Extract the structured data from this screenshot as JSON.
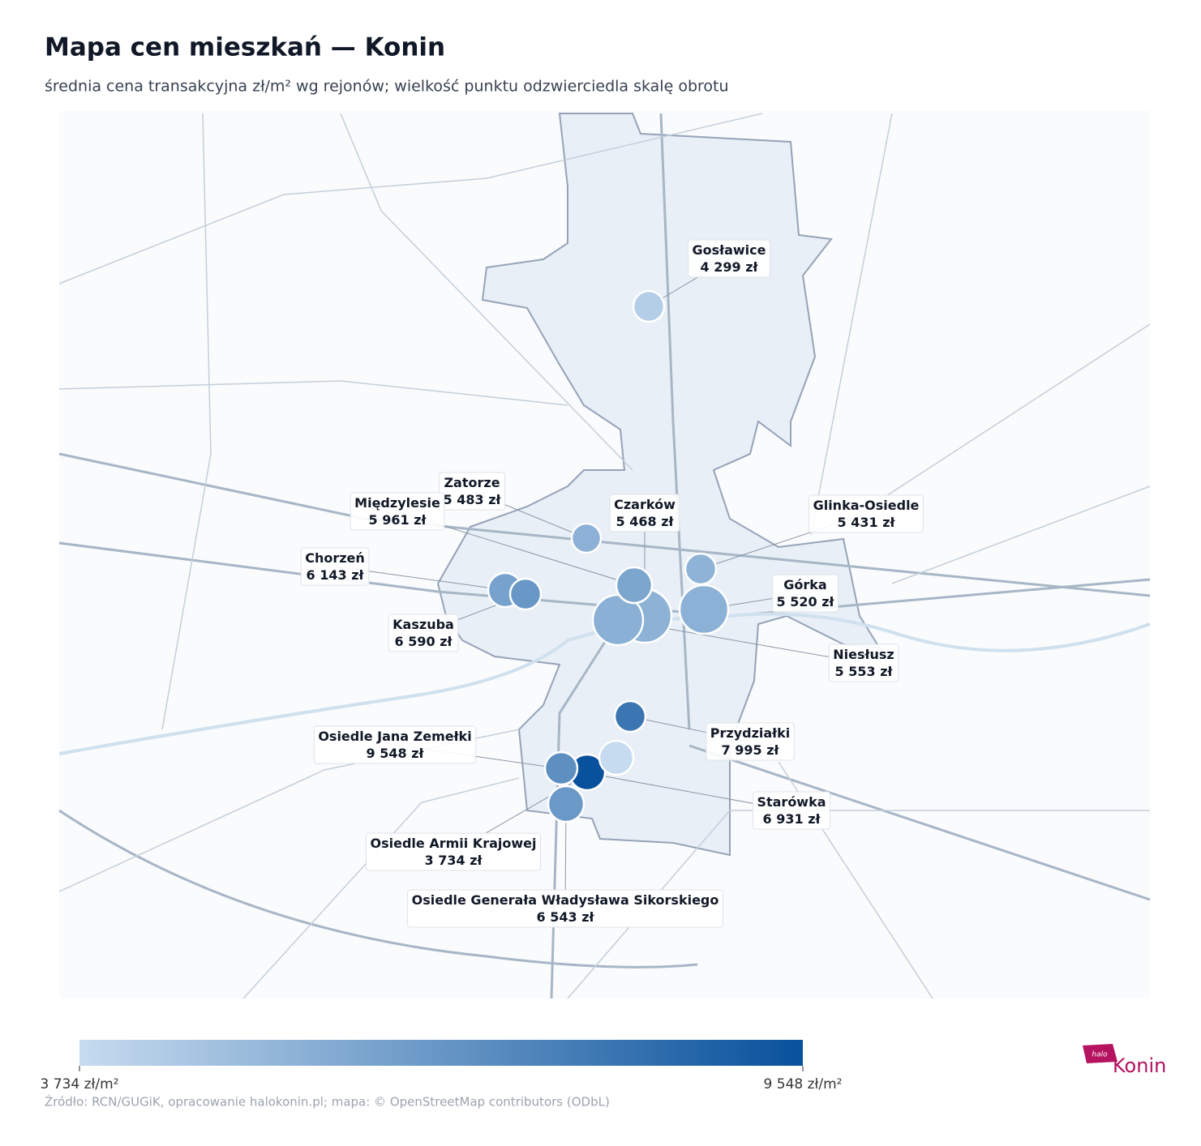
{
  "title": "Mapa cen mieszkań — Konin",
  "subtitle": "średnia cena transakcyjna zł/m² wg rejonów; wielkość punktu odzwierciedla skalę obrotu",
  "chart_data": {
    "type": "bubble-map",
    "regions": [
      "Gosławice",
      "Zatorze",
      "Międzylesie",
      "Czarków",
      "Chorzeń",
      "Kaszuba",
      "Glinka-Osiedle",
      "Górka",
      "Niesłusz",
      "Osiedle Jana Zemełki",
      "Przydziałki",
      "Osiedle Armii Krajowej",
      "Starówka",
      "Osiedle Generała Władysława Sikorskiego"
    ],
    "values": [
      4299,
      5483,
      5961,
      5468,
      6143,
      6590,
      5431,
      5520,
      5553,
      9548,
      7995,
      3734,
      6931,
      6543
    ],
    "value_labels": [
      "4 299 zł",
      "5 483 zł",
      "5 961 zł",
      "5 468 zł",
      "6 143 zł",
      "6 590 zł",
      "5 431 zł",
      "5 520 zł",
      "5 553 zł",
      "9 548 zł",
      "7 995 zł",
      "3 734 zł",
      "6 931 zł",
      "6 543 zł"
    ],
    "clim": [
      3734,
      9548
    ],
    "colorbar_ticks": [
      {
        "value": 3734,
        "label": "3 734 zł/m²"
      },
      {
        "value": 9548,
        "label": "9 548 zł/m²"
      }
    ],
    "colors": [
      "#c6dbef",
      "#08519c"
    ]
  },
  "source": "Źródło: RCN/GUGiK, opracowanie halokonin.pl; mapa: © OpenStreetMap contributors (ODbL)",
  "logo": {
    "small": "halo",
    "big": "Konin"
  }
}
